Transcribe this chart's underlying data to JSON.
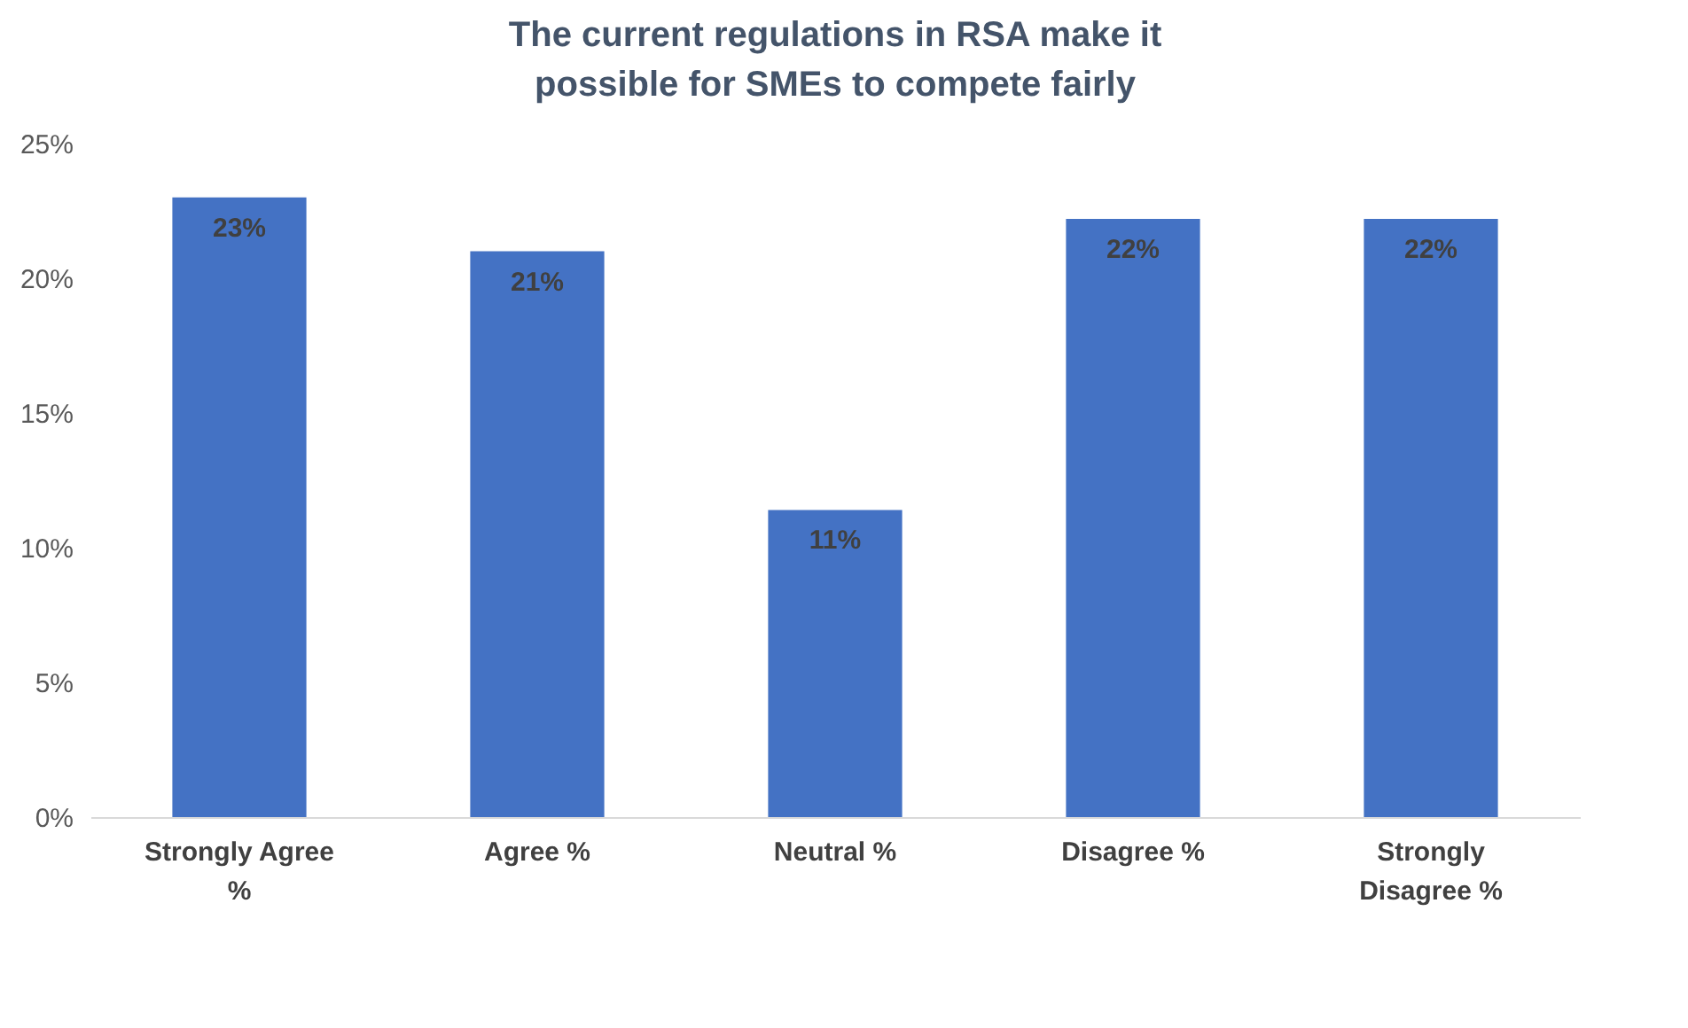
{
  "chart_data": {
    "type": "bar",
    "title": "The current regulations in RSA make it possible for SMEs to compete fairly",
    "categories": [
      "Strongly Agree %",
      "Agree %",
      "Neutral %",
      "Disagree %",
      "Strongly Disagree %"
    ],
    "values": [
      23,
      21,
      11.4,
      22.2,
      22.2
    ],
    "value_labels": [
      "23%",
      "21%",
      "11%",
      "22%",
      "22%"
    ],
    "color": "#4472c4",
    "ylim": [
      0,
      25
    ],
    "yticks": [
      {
        "value": 0,
        "label": "0%"
      },
      {
        "value": 5,
        "label": "5%"
      },
      {
        "value": 10,
        "label": "10%"
      },
      {
        "value": 15,
        "label": "15%"
      },
      {
        "value": 20,
        "label": "20%"
      },
      {
        "value": 25,
        "label": "25%"
      }
    ],
    "grid": false
  }
}
